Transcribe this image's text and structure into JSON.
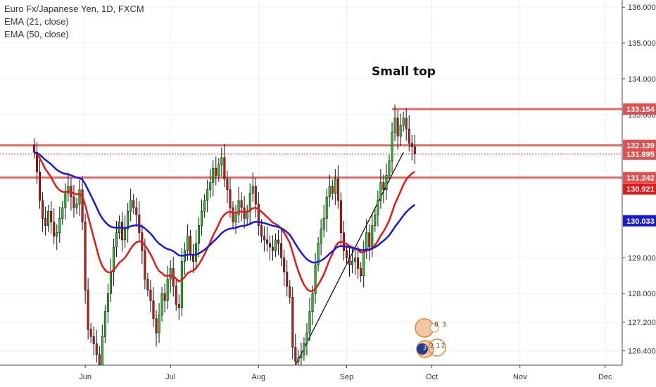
{
  "legend": {
    "symbol": "Euro Fx/Japanese Yen, 1D, FXCM",
    "ema21": "EMA (21, close)",
    "ema50": "EMA (50, close)"
  },
  "annotation": "Small top",
  "colors": {
    "up": "#22cc22",
    "down": "#dd1111",
    "ema21": "#e31a1a",
    "ema50": "#1a1adc",
    "hline": "#e05050",
    "trendline": "#000000",
    "ema50_tag": "#1a1ad4",
    "grid": "#eef0f3"
  },
  "chart_data": {
    "type": "candlestick",
    "x_ticks": [
      "Jun",
      "Jul",
      "Aug",
      "Sep",
      "Oct",
      "Nov",
      "Dec"
    ],
    "y_ticks": [
      "136.000",
      "135.000",
      "134.000",
      "133.000",
      "129.000",
      "128.000",
      "127.200",
      "126.400"
    ],
    "ylim": [
      126.0,
      136.2
    ],
    "x_tick_days": [
      18,
      48,
      79,
      110,
      140,
      171,
      201
    ],
    "xlim_days": [
      -12,
      207
    ],
    "price_tags": [
      {
        "label": "133.154",
        "value": 133.154,
        "color": "#e05050",
        "line": true
      },
      {
        "label": "132.139",
        "value": 132.139,
        "color": "#e05050",
        "line": true
      },
      {
        "label": "131.895",
        "value": 131.895,
        "color": "#e05050",
        "line": false
      },
      {
        "label": "131.242",
        "value": 131.242,
        "color": "#e05050",
        "line": true
      },
      {
        "label": "130.921",
        "value": 130.921,
        "color": "#e31a1a",
        "line": false
      },
      {
        "label": "130.033",
        "value": 130.033,
        "color": "#1a1ad4",
        "line": false
      }
    ],
    "hlines": [
      {
        "value": 133.154,
        "from_day": 126
      },
      {
        "value": 132.139,
        "from_day": -12
      },
      {
        "value": 131.242,
        "from_day": -12
      }
    ],
    "dotted_line": {
      "value": 131.895
    },
    "trendline": {
      "from": {
        "day": 92,
        "value": 126.0
      },
      "to": {
        "day": 130,
        "value": 131.95
      }
    },
    "closes": [
      131.95,
      131.4,
      130.6,
      130.1,
      129.9,
      130.3,
      130.0,
      129.6,
      129.7,
      130.1,
      130.4,
      130.8,
      131.0,
      130.7,
      130.4,
      130.5,
      130.9,
      130.0,
      128.1,
      127.0,
      126.8,
      126.6,
      126.3,
      126.0,
      126.8,
      127.5,
      128.0,
      128.6,
      129.3,
      129.7,
      130.0,
      129.5,
      129.8,
      130.3,
      130.6,
      130.4,
      130.2,
      129.7,
      129.2,
      128.4,
      128.1,
      127.8,
      127.3,
      126.9,
      127.4,
      128.0,
      127.8,
      128.4,
      128.7,
      128.2,
      127.7,
      127.6,
      128.9,
      129.2,
      129.6,
      129.1,
      128.9,
      129.4,
      129.9,
      130.3,
      130.6,
      130.9,
      131.1,
      131.5,
      131.3,
      131.6,
      131.8,
      131.2,
      130.9,
      130.4,
      130.0,
      130.2,
      130.6,
      130.4,
      130.1,
      130.3,
      130.8,
      131.0,
      130.5,
      129.9,
      129.6,
      129.5,
      129.4,
      129.3,
      129.2,
      129.5,
      129.4,
      129.0,
      128.6,
      128.2,
      127.9,
      126.5,
      126.1,
      126.2,
      126.3,
      126.6,
      126.9,
      127.5,
      128.0,
      128.8,
      129.4,
      129.8,
      130.1,
      130.7,
      131.0,
      130.8,
      131.2,
      130.6,
      129.7,
      129.2,
      129.0,
      128.8,
      128.9,
      129.0,
      128.7,
      128.5,
      129.2,
      129.7,
      129.3,
      129.9,
      130.2,
      130.6,
      131.1,
      130.9,
      131.3,
      131.7,
      132.5,
      132.9,
      132.4,
      132.7,
      132.9,
      132.6,
      132.2,
      132.1,
      131.9
    ]
  }
}
